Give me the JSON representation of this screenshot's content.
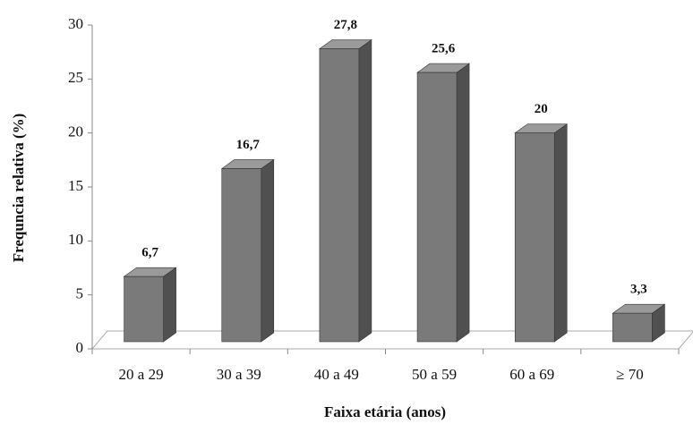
{
  "chart_data": {
    "type": "bar3d",
    "xlabel": "Faixa etária (anos)",
    "ylabel": "Frequncia relativa (%)",
    "categories": [
      "20 a 29",
      "30 a 39",
      "40 a 49",
      "50 a 59",
      "60 a 69",
      "≥ 70"
    ],
    "values": [
      6.7,
      16.7,
      27.8,
      25.6,
      20,
      3.3
    ],
    "value_labels": [
      "6,7",
      "16,7",
      "27,8",
      "25,6",
      "20",
      "3,3"
    ],
    "color": "#7a7a7a",
    "ylim": [
      0,
      30
    ],
    "yticks": [
      0,
      5,
      10,
      15,
      20,
      25,
      30
    ]
  }
}
